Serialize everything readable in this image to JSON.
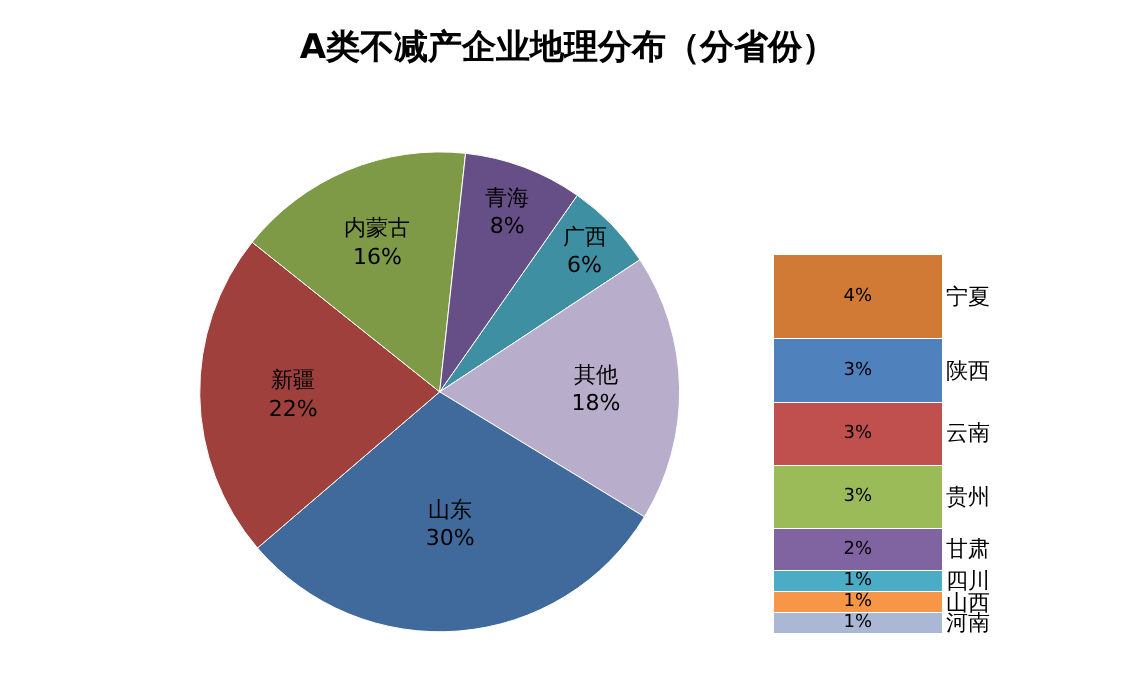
{
  "chart_data": [
    {
      "type": "pie",
      "title": "A类不减产企业地理分布（分省份）",
      "categories": [
        "广西",
        "其他",
        "山东",
        "新疆",
        "内蒙古",
        "青海"
      ],
      "values": [
        6,
        18,
        30,
        22,
        16,
        8
      ],
      "value_labels": [
        "6%",
        "18%",
        "30%",
        "22%",
        "16%",
        "8%"
      ],
      "colors": [
        "#3f8fa3",
        "#b8aecb",
        "#416a9c",
        "#a0403d",
        "#7e9a47",
        "#664f87"
      ]
    },
    {
      "type": "bar",
      "stacked": true,
      "categories": [
        null
      ],
      "tick_labels": false,
      "series": [
        {
          "name": "河南",
          "color": "#aab8d6",
          "values": [
            1
          ],
          "value_labels": [
            "1%"
          ]
        },
        {
          "name": "山西",
          "color": "#f79646",
          "values": [
            1
          ],
          "value_labels": [
            "1%"
          ]
        },
        {
          "name": "四川",
          "color": "#4bacc6",
          "values": [
            1
          ],
          "value_labels": [
            "1%"
          ]
        },
        {
          "name": "甘肃",
          "color": "#8064a2",
          "values": [
            2
          ],
          "value_labels": [
            "2%"
          ]
        },
        {
          "name": "贵州",
          "color": "#9bbb59",
          "values": [
            3
          ],
          "value_labels": [
            "3%"
          ]
        },
        {
          "name": "云南",
          "color": "#c0504d",
          "values": [
            3
          ],
          "value_labels": [
            "3%"
          ]
        },
        {
          "name": "陕西",
          "color": "#4f81bd",
          "values": [
            3
          ],
          "value_labels": [
            "3%"
          ]
        },
        {
          "name": "宁夏",
          "color": "#d07a35",
          "values": [
            4
          ],
          "value_labels": [
            "4%"
          ]
        }
      ]
    }
  ]
}
